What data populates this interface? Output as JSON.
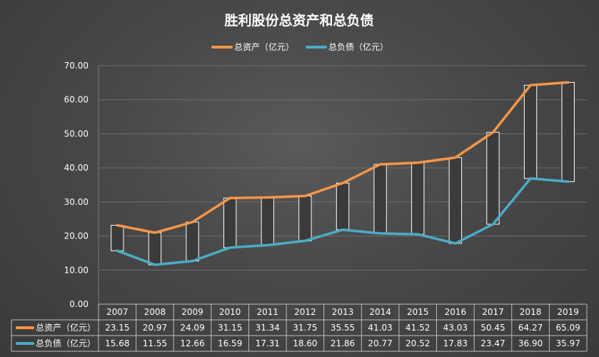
{
  "chart_data": {
    "type": "line",
    "title": "胜利股份总资产和总负债",
    "categories": [
      "2007",
      "2008",
      "2009",
      "2010",
      "2011",
      "2012",
      "2013",
      "2014",
      "2015",
      "2016",
      "2017",
      "2018",
      "2019"
    ],
    "series": [
      {
        "name": "总资产（亿元）",
        "color": "#f79646",
        "values": [
          23.15,
          20.97,
          24.09,
          31.15,
          31.34,
          31.75,
          35.55,
          41.03,
          41.52,
          43.03,
          50.45,
          64.27,
          65.09
        ]
      },
      {
        "name": "总负债（亿元）",
        "color": "#4bacc6",
        "values": [
          15.68,
          11.55,
          12.66,
          16.59,
          17.31,
          18.6,
          21.86,
          20.77,
          20.52,
          17.83,
          23.47,
          36.9,
          35.97
        ]
      }
    ],
    "ylim": [
      0,
      70
    ],
    "yticks": [
      "0.00",
      "10.00",
      "20.00",
      "30.00",
      "40.00",
      "50.00",
      "60.00",
      "70.00"
    ],
    "grid": true,
    "legend": "top",
    "data_table": true,
    "up_down_bars": true
  }
}
